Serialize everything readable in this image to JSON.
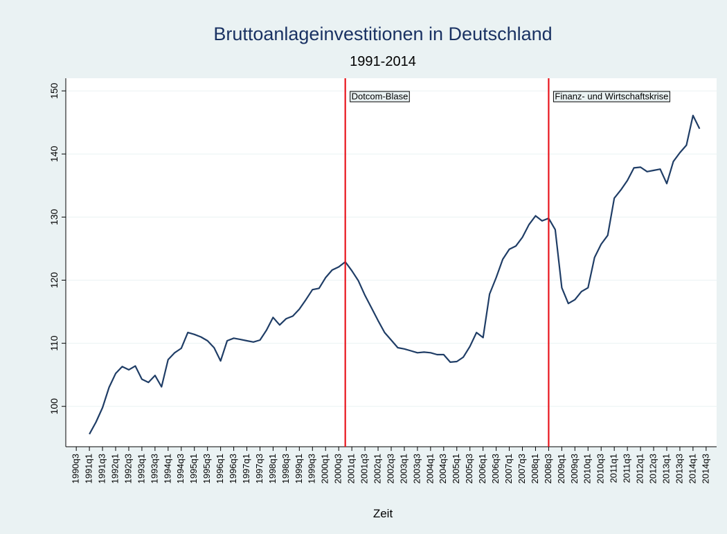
{
  "chart_data": {
    "type": "line",
    "title": "Bruttoanlageinvestitionen in Deutschland",
    "subtitle": "1991-2014",
    "x_label": "Zeit",
    "color": "#1f3d66",
    "grid": true,
    "x": [
      1991,
      1991.25,
      1991.5,
      1991.75,
      1992,
      1992.25,
      1992.5,
      1992.75,
      1993,
      1993.25,
      1993.5,
      1993.75,
      1994,
      1994.25,
      1994.5,
      1994.75,
      1995,
      1995.25,
      1995.5,
      1995.75,
      1996,
      1996.25,
      1996.5,
      1996.75,
      1997,
      1997.25,
      1997.5,
      1997.75,
      1998,
      1998.25,
      1998.5,
      1998.75,
      1999,
      1999.25,
      1999.5,
      1999.75,
      2000,
      2000.25,
      2000.5,
      2000.75,
      2001,
      2001.25,
      2001.5,
      2001.75,
      2002,
      2002.25,
      2002.5,
      2002.75,
      2003,
      2003.25,
      2003.5,
      2003.75,
      2004,
      2004.25,
      2004.5,
      2004.75,
      2005,
      2005.25,
      2005.5,
      2005.75,
      2006,
      2006.25,
      2006.5,
      2006.75,
      2007,
      2007.25,
      2007.5,
      2007.75,
      2008,
      2008.25,
      2008.5,
      2008.75,
      2009,
      2009.25,
      2009.5,
      2009.75,
      2010,
      2010.25,
      2010.5,
      2010.75,
      2011,
      2011.25,
      2011.5,
      2011.75,
      2012,
      2012.25,
      2012.5,
      2012.75,
      2013,
      2013.25,
      2013.5,
      2013.75,
      2014,
      2014.25
    ],
    "values": [
      95.6,
      97.5,
      99.8,
      103,
      105.2,
      106.3,
      105.8,
      106.4,
      104.3,
      103.8,
      104.9,
      103.1,
      107.4,
      108.5,
      109.2,
      111.7,
      111.4,
      111.0,
      110.4,
      109.3,
      107.2,
      110.4,
      110.8,
      110.6,
      110.4,
      110.2,
      110.5,
      112.1,
      114.1,
      112.9,
      113.9,
      114.3,
      115.4,
      116.9,
      118.5,
      118.7,
      120.4,
      121.6,
      122.1,
      122.9,
      121.5,
      119.9,
      117.6,
      115.6,
      113.6,
      111.7,
      110.5,
      109.3,
      109.1,
      108.8,
      108.5,
      108.6,
      108.5,
      108.2,
      108.2,
      107.0,
      107.1,
      107.8,
      109.5,
      111.7,
      110.9,
      117.8,
      120.4,
      123.3,
      124.9,
      125.4,
      126.8,
      128.8,
      130.2,
      129.4,
      129.8,
      128.0,
      118.8,
      116.3,
      116.9,
      118.2,
      118.8,
      123.6,
      125.7,
      127.1,
      133.0,
      134.3,
      135.8,
      137.8,
      137.9,
      137.2,
      137.4,
      137.6,
      135.3,
      138.8,
      140.2,
      141.4,
      146.1,
      144.0
    ],
    "xlim": [
      1990.1,
      2014.9
    ],
    "ylim": [
      93.6,
      152
    ],
    "yticks": [
      100,
      110,
      120,
      130,
      140,
      150
    ],
    "xticks": [
      {
        "value": 1990.5,
        "label": "1990q3"
      },
      {
        "value": 1991,
        "label": "1991q1"
      },
      {
        "value": 1991.5,
        "label": "1991q3"
      },
      {
        "value": 1992,
        "label": "1992q1"
      },
      {
        "value": 1992.5,
        "label": "1992q3"
      },
      {
        "value": 1993,
        "label": "1993q1"
      },
      {
        "value": 1993.5,
        "label": "1993q3"
      },
      {
        "value": 1994,
        "label": "1994q1"
      },
      {
        "value": 1994.5,
        "label": "1994q3"
      },
      {
        "value": 1995,
        "label": "1995q1"
      },
      {
        "value": 1995.5,
        "label": "1995q3"
      },
      {
        "value": 1996,
        "label": "1996q1"
      },
      {
        "value": 1996.5,
        "label": "1996q3"
      },
      {
        "value": 1997,
        "label": "1997q1"
      },
      {
        "value": 1997.5,
        "label": "1997q3"
      },
      {
        "value": 1998,
        "label": "1998q1"
      },
      {
        "value": 1998.5,
        "label": "1998q3"
      },
      {
        "value": 1999,
        "label": "1999q1"
      },
      {
        "value": 1999.5,
        "label": "1999q3"
      },
      {
        "value": 2000,
        "label": "2000q1"
      },
      {
        "value": 2000.5,
        "label": "2000q3"
      },
      {
        "value": 2001,
        "label": "2001q1"
      },
      {
        "value": 2001.5,
        "label": "2001q3"
      },
      {
        "value": 2002,
        "label": "2002q1"
      },
      {
        "value": 2002.5,
        "label": "2002q3"
      },
      {
        "value": 2003,
        "label": "2003q1"
      },
      {
        "value": 2003.5,
        "label": "2003q3"
      },
      {
        "value": 2004,
        "label": "2004q1"
      },
      {
        "value": 2004.5,
        "label": "2004q3"
      },
      {
        "value": 2005,
        "label": "2005q1"
      },
      {
        "value": 2005.5,
        "label": "2005q3"
      },
      {
        "value": 2006,
        "label": "2006q1"
      },
      {
        "value": 2006.5,
        "label": "2006q3"
      },
      {
        "value": 2007,
        "label": "2007q1"
      },
      {
        "value": 2007.5,
        "label": "2007q3"
      },
      {
        "value": 2008,
        "label": "2008q1"
      },
      {
        "value": 2008.5,
        "label": "2008q3"
      },
      {
        "value": 2009,
        "label": "2009q1"
      },
      {
        "value": 2009.5,
        "label": "2009q3"
      },
      {
        "value": 2010,
        "label": "2010q1"
      },
      {
        "value": 2010.5,
        "label": "2010q3"
      },
      {
        "value": 2011,
        "label": "2011q1"
      },
      {
        "value": 2011.5,
        "label": "2011q3"
      },
      {
        "value": 2012,
        "label": "2012q1"
      },
      {
        "value": 2012.5,
        "label": "2012q3"
      },
      {
        "value": 2013,
        "label": "2013q1"
      },
      {
        "value": 2013.5,
        "label": "2013q3"
      },
      {
        "value": 2014,
        "label": "2014q1"
      },
      {
        "value": 2014.5,
        "label": "2014q3"
      }
    ],
    "vlines": [
      {
        "x": 2000.75,
        "label": "Dotcom-Blase",
        "color": "#e8141c"
      },
      {
        "x": 2008.5,
        "label": "Finanz- und Wirtschaftskrise",
        "color": "#e8141c"
      }
    ]
  }
}
